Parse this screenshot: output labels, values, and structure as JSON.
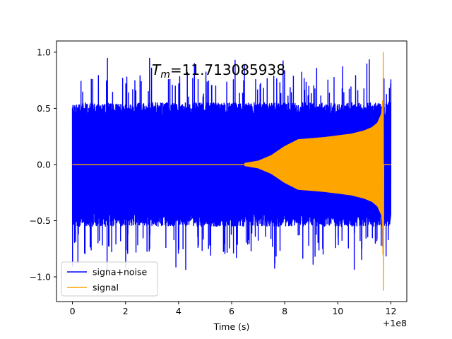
{
  "chart_data": {
    "type": "line",
    "title": "",
    "xlabel": "Time (s)",
    "ylabel": "",
    "x_offset_label": "+1e8",
    "xlim": [
      -0.6,
      12.6
    ],
    "ylim": [
      -1.22,
      1.1
    ],
    "xticks": [
      0,
      2,
      4,
      6,
      8,
      10,
      12
    ],
    "xtick_labels": [
      "0",
      "2",
      "4",
      "6",
      "8",
      "10",
      "12"
    ],
    "yticks": [
      1.0,
      0.5,
      0.0,
      -0.5,
      -1.0
    ],
    "ytick_labels": [
      "1.0",
      "0.5",
      "0.0",
      "−0.5",
      "−1.0"
    ],
    "grid": false,
    "legend_position": "lower-left",
    "annotation": {
      "prefix": "T",
      "subscript": "m",
      "value": "=11.713085938"
    },
    "series": [
      {
        "name": "signa+noise",
        "color": "#0000ff",
        "description_points": {
          "x_range": [
            0,
            12
          ],
          "noise_band": [
            -0.55,
            0.55
          ],
          "spike_max": 0.95,
          "spike_min": -0.95
        }
      },
      {
        "name": "signal",
        "color": "#ffa500",
        "envelope": {
          "x": [
            0,
            6.0,
            6.5,
            7.0,
            7.5,
            8.0,
            8.5,
            9.0,
            9.5,
            10.0,
            10.5,
            11.0,
            11.3,
            11.5,
            11.65,
            11.7,
            11.713,
            11.75,
            12.0
          ],
          "amplitude": [
            0,
            0.0,
            0.01,
            0.03,
            0.08,
            0.16,
            0.22,
            0.23,
            0.24,
            0.255,
            0.27,
            0.3,
            0.33,
            0.37,
            0.45,
            0.6,
            1.0,
            0,
            0
          ]
        },
        "merger_min": -1.12
      }
    ]
  }
}
